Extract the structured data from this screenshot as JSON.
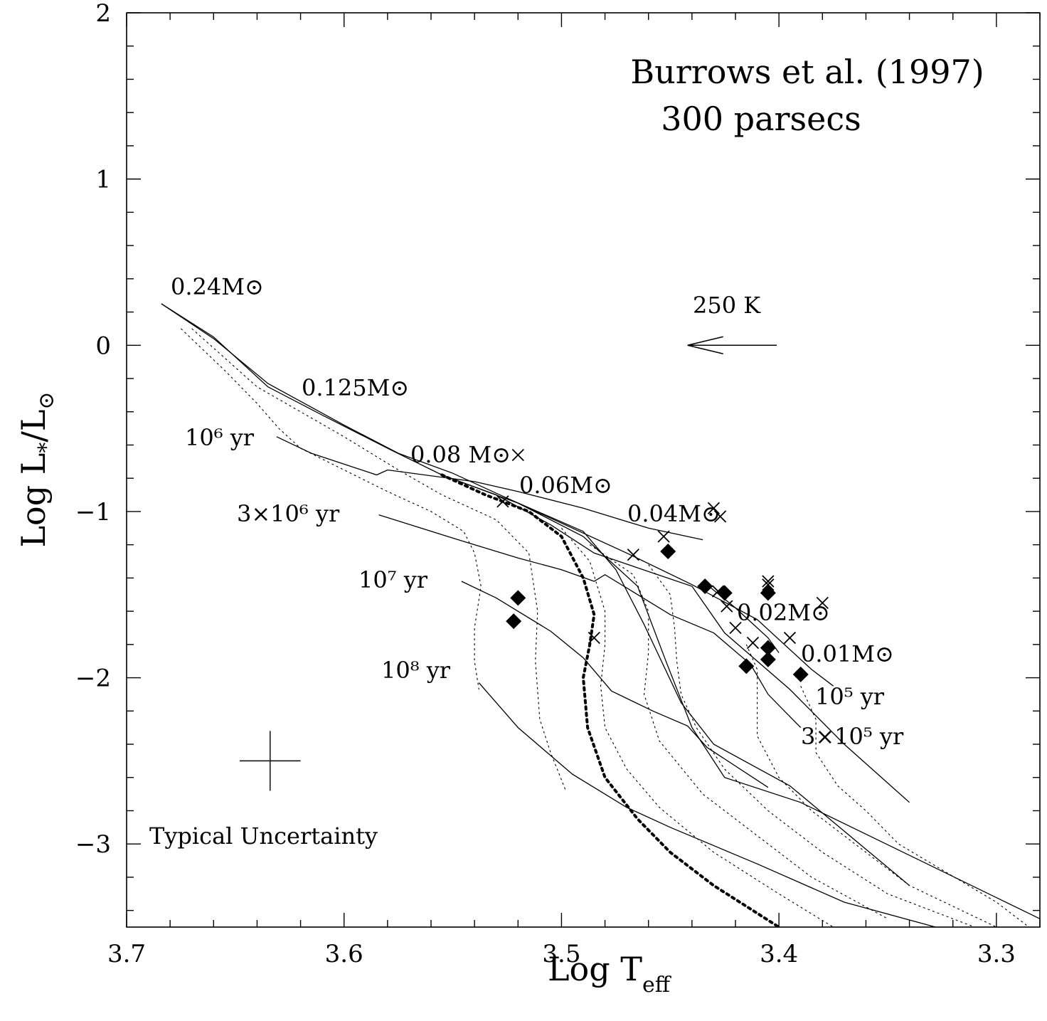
{
  "chart_data": {
    "type": "scatter",
    "title": "Burrows et al. (1997)",
    "subtitle": "300 parsecs",
    "xlabel": {
      "main": "Log T",
      "sub": "eff"
    },
    "ylabel": {
      "main": "Log L",
      "sub1": "*",
      "mid": "/L",
      "sub2": "⊙"
    },
    "xlim": [
      3.7,
      3.28
    ],
    "ylim": [
      -3.5,
      2
    ],
    "x_reversed": true,
    "grid": false,
    "x_ticks": [
      {
        "value": 3.7,
        "label": "3.7"
      },
      {
        "value": 3.6,
        "label": "3.6"
      },
      {
        "value": 3.5,
        "label": "3.5"
      },
      {
        "value": 3.4,
        "label": "3.4"
      },
      {
        "value": 3.3,
        "label": "3.3"
      }
    ],
    "y_ticks": [
      {
        "value": 2,
        "label": "2"
      },
      {
        "value": 1,
        "label": "1"
      },
      {
        "value": 0,
        "label": "0"
      },
      {
        "value": -1,
        "label": "−1"
      },
      {
        "value": -2,
        "label": "−2"
      },
      {
        "value": -3,
        "label": "−3"
      }
    ],
    "mass_tracks": [
      {
        "name": "0.24M⊙",
        "points": [
          [
            3.684,
            0.25
          ],
          [
            3.66,
            0.05
          ],
          [
            3.635,
            -0.25
          ],
          [
            3.61,
            -0.42
          ],
          [
            3.58,
            -0.62
          ],
          [
            3.555,
            -0.78
          ],
          [
            3.52,
            -0.95
          ],
          [
            3.49,
            -1.15
          ],
          [
            3.465,
            -1.45
          ],
          [
            3.452,
            -1.9
          ],
          [
            3.44,
            -2.3
          ],
          [
            3.425,
            -2.6
          ],
          [
            3.39,
            -2.75
          ],
          [
            3.28,
            -3.45
          ]
        ]
      },
      {
        "name": "0.125M⊙",
        "points": [
          [
            3.684,
            0.25
          ],
          [
            3.66,
            0.04
          ],
          [
            3.635,
            -0.23
          ],
          [
            3.6,
            -0.48
          ],
          [
            3.575,
            -0.65
          ],
          [
            3.55,
            -0.77
          ],
          [
            3.525,
            -0.92
          ],
          [
            3.49,
            -1.12
          ],
          [
            3.475,
            -1.35
          ],
          [
            3.462,
            -1.68
          ],
          [
            3.445,
            -2.15
          ],
          [
            3.43,
            -2.4
          ],
          [
            3.395,
            -2.65
          ],
          [
            3.34,
            -3.25
          ]
        ]
      },
      {
        "name": "0.08 M⊙",
        "points": [
          [
            3.555,
            -0.78
          ],
          [
            3.53,
            -0.9
          ],
          [
            3.505,
            -1.08
          ],
          [
            3.485,
            -1.25
          ],
          [
            3.44,
            -1.45
          ],
          [
            3.425,
            -1.73
          ],
          [
            3.395,
            -2.07
          ],
          [
            3.37,
            -2.4
          ],
          [
            3.34,
            -2.75
          ]
        ]
      },
      {
        "name": "0.06M⊙",
        "points": [
          [
            3.52,
            -0.95
          ],
          [
            3.47,
            -1.25
          ],
          [
            3.44,
            -1.44
          ],
          [
            3.41,
            -1.65
          ],
          [
            3.385,
            -1.95
          ],
          [
            3.375,
            -2.05
          ]
        ]
      },
      {
        "name": "0.04M⊙",
        "points": [
          [
            3.435,
            -1.42
          ],
          [
            3.42,
            -1.58
          ],
          [
            3.405,
            -1.76
          ],
          [
            3.4,
            -1.85
          ]
        ]
      }
    ],
    "isochrones": [
      {
        "name": "10⁶ yr",
        "points": [
          [
            3.631,
            -0.55
          ],
          [
            3.615,
            -0.65
          ],
          [
            3.585,
            -0.78
          ],
          [
            3.58,
            -0.75
          ],
          [
            3.54,
            -0.82
          ],
          [
            3.52,
            -0.88
          ],
          [
            3.49,
            -0.98
          ],
          [
            3.46,
            -1.1
          ],
          [
            3.435,
            -1.17
          ]
        ]
      },
      {
        "name": "3×10⁶ yr",
        "points": [
          [
            3.584,
            -1.02
          ],
          [
            3.55,
            -1.16
          ],
          [
            3.52,
            -1.28
          ],
          [
            3.5,
            -1.35
          ],
          [
            3.485,
            -1.42
          ],
          [
            3.48,
            -1.38
          ],
          [
            3.465,
            -1.5
          ],
          [
            3.45,
            -1.62
          ],
          [
            3.43,
            -1.73
          ],
          [
            3.413,
            -1.92
          ],
          [
            3.405,
            -2.1
          ],
          [
            3.39,
            -2.3
          ]
        ]
      },
      {
        "name": "10⁷ yr",
        "points": [
          [
            3.546,
            -1.42
          ],
          [
            3.53,
            -1.52
          ],
          [
            3.505,
            -1.72
          ],
          [
            3.49,
            -1.88
          ],
          [
            3.477,
            -2.08
          ],
          [
            3.458,
            -2.2
          ],
          [
            3.442,
            -2.29
          ],
          [
            3.433,
            -2.42
          ],
          [
            3.405,
            -2.66
          ]
        ]
      },
      {
        "name": "10⁸ yr",
        "points": [
          [
            3.538,
            -2.03
          ],
          [
            3.52,
            -2.3
          ],
          [
            3.495,
            -2.58
          ],
          [
            3.47,
            -2.78
          ],
          [
            3.45,
            -2.9
          ],
          [
            3.41,
            -3.12
          ],
          [
            3.37,
            -3.35
          ],
          [
            3.328,
            -3.5
          ]
        ]
      }
    ],
    "dotted_curves": [
      [
        [
          3.675,
          0.1
        ],
        [
          3.655,
          -0.15
        ],
        [
          3.64,
          -0.35
        ],
        [
          3.63,
          -0.5
        ],
        [
          3.62,
          -0.62
        ],
        [
          3.6,
          -0.75
        ],
        [
          3.58,
          -0.88
        ],
        [
          3.56,
          -1.0
        ],
        [
          3.545,
          -1.12
        ],
        [
          3.54,
          -1.25
        ],
        [
          3.537,
          -1.45
        ],
        [
          3.54,
          -1.7
        ],
        [
          3.54,
          -1.9
        ],
        [
          3.538,
          -2.07
        ]
      ],
      [
        [
          3.67,
          0.1
        ],
        [
          3.64,
          -0.25
        ],
        [
          3.6,
          -0.55
        ],
        [
          3.575,
          -0.75
        ],
        [
          3.555,
          -0.9
        ],
        [
          3.53,
          -1.05
        ],
        [
          3.515,
          -1.25
        ],
        [
          3.511,
          -1.6
        ],
        [
          3.512,
          -1.9
        ],
        [
          3.51,
          -2.25
        ],
        [
          3.505,
          -2.45
        ],
        [
          3.498,
          -2.68
        ]
      ],
      [
        [
          3.5,
          -1.1
        ],
        [
          3.487,
          -1.3
        ],
        [
          3.48,
          -1.6
        ],
        [
          3.48,
          -1.8
        ],
        [
          3.482,
          -2.05
        ],
        [
          3.48,
          -2.3
        ],
        [
          3.47,
          -2.55
        ],
        [
          3.455,
          -2.78
        ],
        [
          3.43,
          -3.05
        ],
        [
          3.4,
          -3.3
        ],
        [
          3.375,
          -3.5
        ]
      ],
      [
        [
          3.487,
          -1.2
        ],
        [
          3.467,
          -1.38
        ],
        [
          3.46,
          -1.6
        ],
        [
          3.46,
          -1.85
        ],
        [
          3.462,
          -2.1
        ],
        [
          3.455,
          -2.38
        ],
        [
          3.435,
          -2.7
        ],
        [
          3.41,
          -2.95
        ],
        [
          3.385,
          -3.2
        ],
        [
          3.35,
          -3.45
        ]
      ],
      [
        [
          3.46,
          -1.32
        ],
        [
          3.45,
          -1.5
        ],
        [
          3.448,
          -1.7
        ],
        [
          3.447,
          -1.9
        ],
        [
          3.445,
          -2.1
        ],
        [
          3.438,
          -2.3
        ],
        [
          3.425,
          -2.55
        ],
        [
          3.405,
          -2.8
        ],
        [
          3.38,
          -3.05
        ],
        [
          3.35,
          -3.3
        ],
        [
          3.31,
          -3.5
        ]
      ],
      [
        [
          3.415,
          -1.8
        ],
        [
          3.41,
          -1.95
        ],
        [
          3.41,
          -2.15
        ],
        [
          3.41,
          -2.35
        ],
        [
          3.4,
          -2.6
        ],
        [
          3.385,
          -2.8
        ],
        [
          3.36,
          -3.05
        ],
        [
          3.34,
          -3.25
        ],
        [
          3.3,
          -3.5
        ]
      ],
      [
        [
          3.39,
          -2.05
        ],
        [
          3.383,
          -2.25
        ],
        [
          3.383,
          -2.45
        ],
        [
          3.373,
          -2.65
        ],
        [
          3.36,
          -2.8
        ],
        [
          3.345,
          -3.0
        ],
        [
          3.3,
          -3.35
        ],
        [
          3.285,
          -3.5
        ]
      ]
    ],
    "substellar_limit": [
      [
        3.555,
        -0.78
      ],
      [
        3.535,
        -0.9
      ],
      [
        3.515,
        -1.0
      ],
      [
        3.5,
        -1.15
      ],
      [
        3.49,
        -1.4
      ],
      [
        3.485,
        -1.62
      ],
      [
        3.487,
        -1.8
      ],
      [
        3.49,
        -2.0
      ],
      [
        3.488,
        -2.3
      ],
      [
        3.48,
        -2.6
      ],
      [
        3.465,
        -2.85
      ],
      [
        3.45,
        -3.05
      ],
      [
        3.43,
        -3.25
      ],
      [
        3.4,
        -3.5
      ]
    ],
    "crosses": [
      [
        3.52,
        -0.66
      ],
      [
        3.527,
        -0.94
      ],
      [
        3.485,
        -1.76
      ],
      [
        3.467,
        -1.26
      ],
      [
        3.453,
        -1.15
      ],
      [
        3.43,
        -0.98
      ],
      [
        3.427,
        -1.03
      ],
      [
        3.428,
        -1.48
      ],
      [
        3.424,
        -1.57
      ],
      [
        3.42,
        -1.7
      ],
      [
        3.412,
        -1.79
      ],
      [
        3.405,
        -1.42
      ],
      [
        3.405,
        -1.44
      ],
      [
        3.395,
        -1.76
      ],
      [
        3.38,
        -1.55
      ]
    ],
    "diamonds": [
      [
        3.52,
        -1.52
      ],
      [
        3.522,
        -1.66
      ],
      [
        3.451,
        -1.24
      ],
      [
        3.434,
        -1.45
      ],
      [
        3.425,
        -1.49
      ],
      [
        3.415,
        -1.93
      ],
      [
        3.405,
        -1.49
      ],
      [
        3.405,
        -1.82
      ],
      [
        3.405,
        -1.89
      ],
      [
        3.39,
        -1.98
      ]
    ],
    "annotations": {
      "m024": "0.24M⊙",
      "m0125": "0.125M⊙",
      "m008": "0.08 M⊙",
      "m006": "0.06M⊙",
      "m004": "0.04M⊙",
      "m002": "0.02M⊙",
      "m001": "0.01M⊙",
      "age_1e6": "10⁶ yr",
      "age_3e6": "3×10⁶ yr",
      "age_1e7": "10⁷ yr",
      "age_1e8": "10⁸ yr",
      "age_1e5": "10⁵ yr",
      "age_3e5": "3×10⁵ yr",
      "arrow": "250 K",
      "uncertainty": "Typical Uncertainty"
    },
    "arrow": {
      "from": [
        3.401,
        0.0
      ],
      "to": [
        3.442,
        0.0
      ]
    },
    "error_bar": {
      "center": [
        3.634,
        -2.5
      ],
      "dx": 0.014,
      "dy": 0.18
    }
  }
}
